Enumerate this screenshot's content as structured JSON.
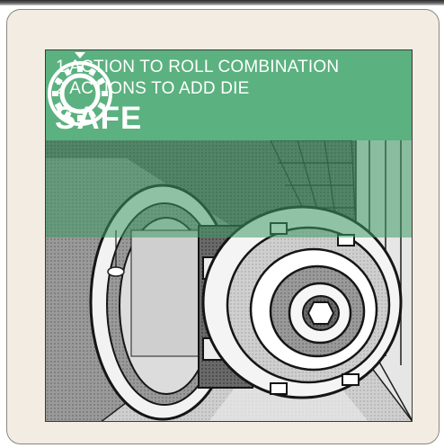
{
  "card": {
    "action_line_1": "1 ACTION TO ROLL COMBINATION",
    "action_line_2": "2 ACTIONS TO ADD DIE",
    "title": "SAFE"
  },
  "icons": {
    "header": "combination-dial-icon"
  },
  "colors": {
    "header_green": "#5bb17f",
    "card_background": "#f3ece3",
    "overlay_green": "#3e9a64"
  }
}
